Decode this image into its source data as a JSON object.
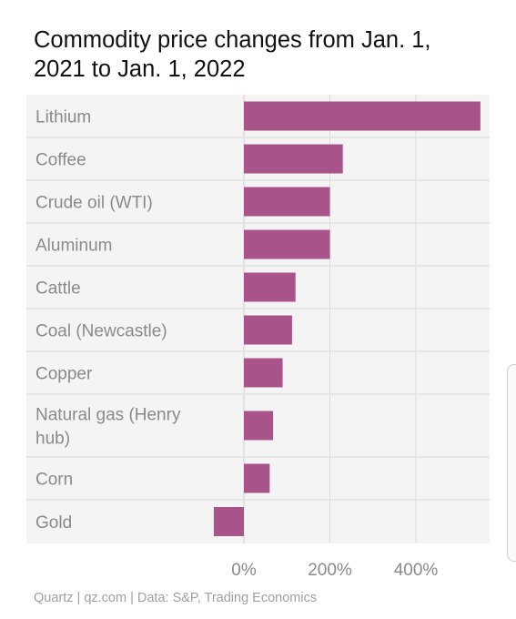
{
  "chart_data": {
    "type": "bar",
    "orientation": "horizontal",
    "title": "Commodity price changes from Jan. 1, 2021 to Jan. 1, 2022",
    "categories": [
      "Lithium",
      "Coffee",
      "Crude oil (WTI)",
      "Aluminum",
      "Cattle",
      "Coal (Newcastle)",
      "Copper",
      "Natural gas (Henry hub)",
      "Corn",
      "Gold"
    ],
    "values": [
      550,
      230,
      200,
      200,
      120,
      112,
      90,
      68,
      60,
      -70
    ],
    "xlim": [
      -70,
      550
    ],
    "xticks": [
      0,
      200,
      400
    ],
    "xtick_labels": [
      "0%",
      "200%",
      "400%"
    ],
    "grid": true,
    "bar_color": "#a8548a"
  },
  "footer": "Quartz | qz.com | Data: S&P, Trading Economics"
}
